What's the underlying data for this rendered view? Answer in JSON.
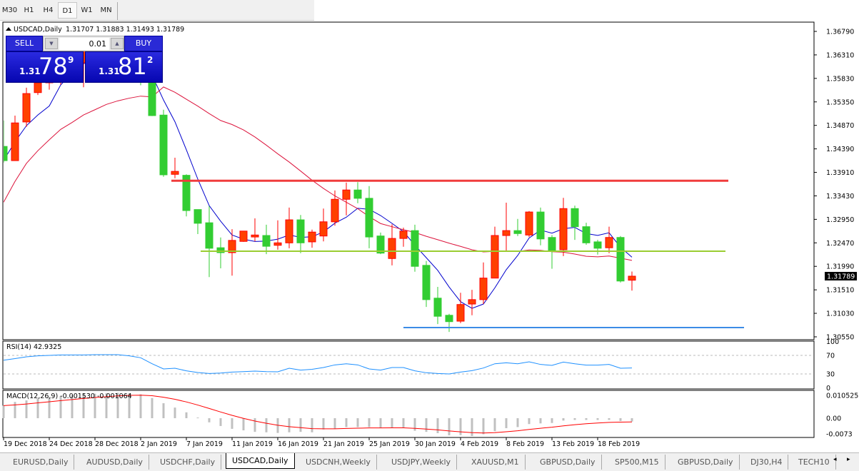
{
  "toolbar": {
    "timeframes": [
      "M30",
      "H1",
      "H4",
      "D1",
      "W1",
      "MN"
    ],
    "active": "D1"
  },
  "chart": {
    "symbol_label": "USDCAD,Daily",
    "ohlc_label": "1.31707 1.31883 1.31493 1.31789",
    "current_price": "1.31789",
    "price_axis": [
      "1.36790",
      "1.36310",
      "1.35830",
      "1.35350",
      "1.34870",
      "1.34390",
      "1.33910",
      "1.33430",
      "1.32950",
      "1.32470",
      "1.31990",
      "1.31510",
      "1.31030",
      "1.30550"
    ],
    "date_axis": [
      "19 Dec 2018",
      "24 Dec 2018",
      "28 Dec 2018",
      "2 Jan 2019",
      "7 Jan 2019",
      "11 Jan 2019",
      "16 Jan 2019",
      "21 Jan 2019",
      "25 Jan 2019",
      "30 Jan 2019",
      "4 Feb 2019",
      "8 Feb 2019",
      "13 Feb 2019",
      "18 Feb 2019"
    ]
  },
  "one_click": {
    "sell_label": "SELL",
    "buy_label": "BUY",
    "volume": "0.01",
    "down_icon": "triangle-down",
    "up_icon": "triangle-up",
    "sell": {
      "prefix": "1.31",
      "big": "78",
      "sup": "9"
    },
    "buy": {
      "prefix": "1.31",
      "big": "81",
      "sup": "2"
    }
  },
  "rsi": {
    "label": "RSI(14) 42.9325",
    "axis": [
      "100",
      "70",
      "30",
      "0"
    ]
  },
  "macd": {
    "label": "MACD(12,26,9) -0.001530 -0.001064",
    "axis": [
      "0.010525",
      "0.00",
      "-0.0073"
    ]
  },
  "tabs": [
    "EURUSD,Daily",
    "AUDUSD,Daily",
    "USDCHF,Daily",
    "USDCAD,Daily",
    "USDCNH,Weekly",
    "USDJPY,Weekly",
    "XAUUSD,M1",
    "GBPUSD,Daily",
    "SP500,M15",
    "GBPUSD,Daily",
    "DJ30,H4",
    "TECH10"
  ],
  "active_tab": "USDCAD,Daily",
  "colors": {
    "up": "#ff4000",
    "up_border": "#ff0000",
    "down": "#32cd32",
    "ma_fast": "#0000cd",
    "ma_slow": "#dc143c",
    "resistance": "#f03c3c",
    "mid": "#9acd32",
    "support": "#3c8ce6",
    "rsi": "#1e90ff",
    "macd_hist": "#c0c0c0",
    "macd_signal": "#ff0000"
  },
  "chart_data": {
    "type": "candlestick",
    "ylim": [
      1.3055,
      1.3679
    ],
    "ohlc": [
      [
        1.3444,
        1.3497,
        1.3411,
        1.3415
      ],
      [
        1.3415,
        1.3507,
        1.3415,
        1.3492
      ],
      [
        1.3494,
        1.3564,
        1.3484,
        1.3552
      ],
      [
        1.3554,
        1.3583,
        1.3549,
        1.3574
      ],
      [
        1.3574,
        1.361,
        1.356,
        1.36
      ],
      [
        1.36,
        1.364,
        1.357,
        1.363
      ],
      [
        1.363,
        1.365,
        1.36,
        1.3615
      ],
      [
        1.3615,
        1.366,
        1.3565,
        1.3645
      ],
      [
        1.3645,
        1.3665,
        1.361,
        1.3625
      ],
      [
        1.3625,
        1.3655,
        1.359,
        1.364
      ],
      [
        1.364,
        1.3662,
        1.36,
        1.3615
      ],
      [
        1.3615,
        1.364,
        1.358,
        1.36
      ],
      [
        1.36,
        1.362,
        1.3569,
        1.3586
      ],
      [
        1.3586,
        1.359,
        1.3506,
        1.3507
      ],
      [
        1.3508,
        1.3519,
        1.3382,
        1.3386
      ],
      [
        1.3387,
        1.3421,
        1.3379,
        1.3393
      ],
      [
        1.3385,
        1.3387,
        1.3301,
        1.3313
      ],
      [
        1.3315,
        1.3315,
        1.3265,
        1.3287
      ],
      [
        1.3288,
        1.3322,
        1.3177,
        1.3236
      ],
      [
        1.3237,
        1.3258,
        1.3195,
        1.3227
      ],
      [
        1.3227,
        1.3275,
        1.318,
        1.3252
      ],
      [
        1.325,
        1.3271,
        1.3249,
        1.3271
      ],
      [
        1.3259,
        1.3297,
        1.325,
        1.3263
      ],
      [
        1.3262,
        1.3284,
        1.3224,
        1.324
      ],
      [
        1.3242,
        1.3293,
        1.3233,
        1.3247
      ],
      [
        1.3247,
        1.3319,
        1.3236,
        1.3294
      ],
      [
        1.3294,
        1.3304,
        1.3226,
        1.3247
      ],
      [
        1.3249,
        1.3274,
        1.3237,
        1.3269
      ],
      [
        1.3261,
        1.3317,
        1.325,
        1.329
      ],
      [
        1.329,
        1.3354,
        1.3282,
        1.3336
      ],
      [
        1.3336,
        1.337,
        1.3303,
        1.3355
      ],
      [
        1.3355,
        1.3371,
        1.3328,
        1.3338
      ],
      [
        1.3338,
        1.3363,
        1.3236,
        1.3259
      ],
      [
        1.3261,
        1.3268,
        1.3224,
        1.3226
      ],
      [
        1.3215,
        1.3285,
        1.3201,
        1.3256
      ],
      [
        1.3256,
        1.3278,
        1.3239,
        1.3271
      ],
      [
        1.3272,
        1.3284,
        1.3188,
        1.3199
      ],
      [
        1.3201,
        1.321,
        1.3116,
        1.3131
      ],
      [
        1.3134,
        1.3157,
        1.3081,
        1.3097
      ],
      [
        1.3099,
        1.3102,
        1.3065,
        1.3086
      ],
      [
        1.3087,
        1.3145,
        1.3083,
        1.3121
      ],
      [
        1.3122,
        1.3151,
        1.3099,
        1.3131
      ],
      [
        1.3131,
        1.3207,
        1.3122,
        1.3175
      ],
      [
        1.3175,
        1.328,
        1.3175,
        1.3262
      ],
      [
        1.3262,
        1.3329,
        1.3231,
        1.3272
      ],
      [
        1.3272,
        1.3296,
        1.3261,
        1.3266
      ],
      [
        1.3263,
        1.3312,
        1.3259,
        1.331
      ],
      [
        1.331,
        1.3319,
        1.3242,
        1.3255
      ],
      [
        1.3258,
        1.3263,
        1.3194,
        1.3231
      ],
      [
        1.3233,
        1.3339,
        1.322,
        1.3317
      ],
      [
        1.3317,
        1.3323,
        1.3253,
        1.328
      ],
      [
        1.328,
        1.3288,
        1.3243,
        1.3247
      ],
      [
        1.3249,
        1.3253,
        1.3223,
        1.3236
      ],
      [
        1.3237,
        1.328,
        1.3226,
        1.3258
      ],
      [
        1.3258,
        1.3261,
        1.3166,
        1.3169
      ],
      [
        1.31707,
        1.31883,
        1.31493,
        1.31789
      ]
    ],
    "horizontal_lines": [
      1.3374,
      1.323,
      1.3074
    ],
    "rsi": [
      59.7,
      63,
      67,
      69,
      70,
      71,
      71,
      71,
      71.5,
      71.5,
      71.5,
      69,
      64.9,
      52,
      40.8,
      42.3,
      36.7,
      33,
      31,
      32,
      34.1,
      35,
      36.2,
      35,
      34.6,
      42.3,
      38.2,
      40,
      43.8,
      49.5,
      52,
      49.5,
      40.8,
      38.2,
      43.8,
      43.8,
      36.7,
      32.6,
      31,
      30,
      34.1,
      37.2,
      42.8,
      52,
      54.1,
      52,
      56.2,
      50.5,
      48.5,
      55.6,
      52,
      49,
      49,
      50.5,
      42.3,
      42.93
    ],
    "rsi_levels": [
      70,
      30
    ],
    "macd": [
      0.0058,
      0.0075,
      0.0082,
      0.0091,
      0.0096,
      0.0102,
      0.0106,
      0.011,
      0.0113,
      0.0115,
      0.0117,
      0.0115,
      0.011,
      0.0093,
      0.0069,
      0.0049,
      0.0027,
      0.0003,
      -0.0019,
      -0.0036,
      -0.0049,
      -0.0056,
      -0.0063,
      -0.0065,
      -0.0068,
      -0.0065,
      -0.0063,
      -0.0065,
      -0.0052,
      -0.0049,
      -0.0041,
      -0.0041,
      -0.0041,
      -0.0045,
      -0.0043,
      -0.0043,
      -0.0058,
      -0.0063,
      -0.0069,
      -0.0079,
      -0.0078,
      -0.0082,
      -0.0074,
      -0.006,
      -0.0046,
      -0.0041,
      -0.0027,
      -0.0024,
      -0.0022,
      -0.0011,
      -0.0008,
      -0.0008,
      -0.0008,
      -0.0008,
      -0.0013,
      -0.00153
    ]
  }
}
